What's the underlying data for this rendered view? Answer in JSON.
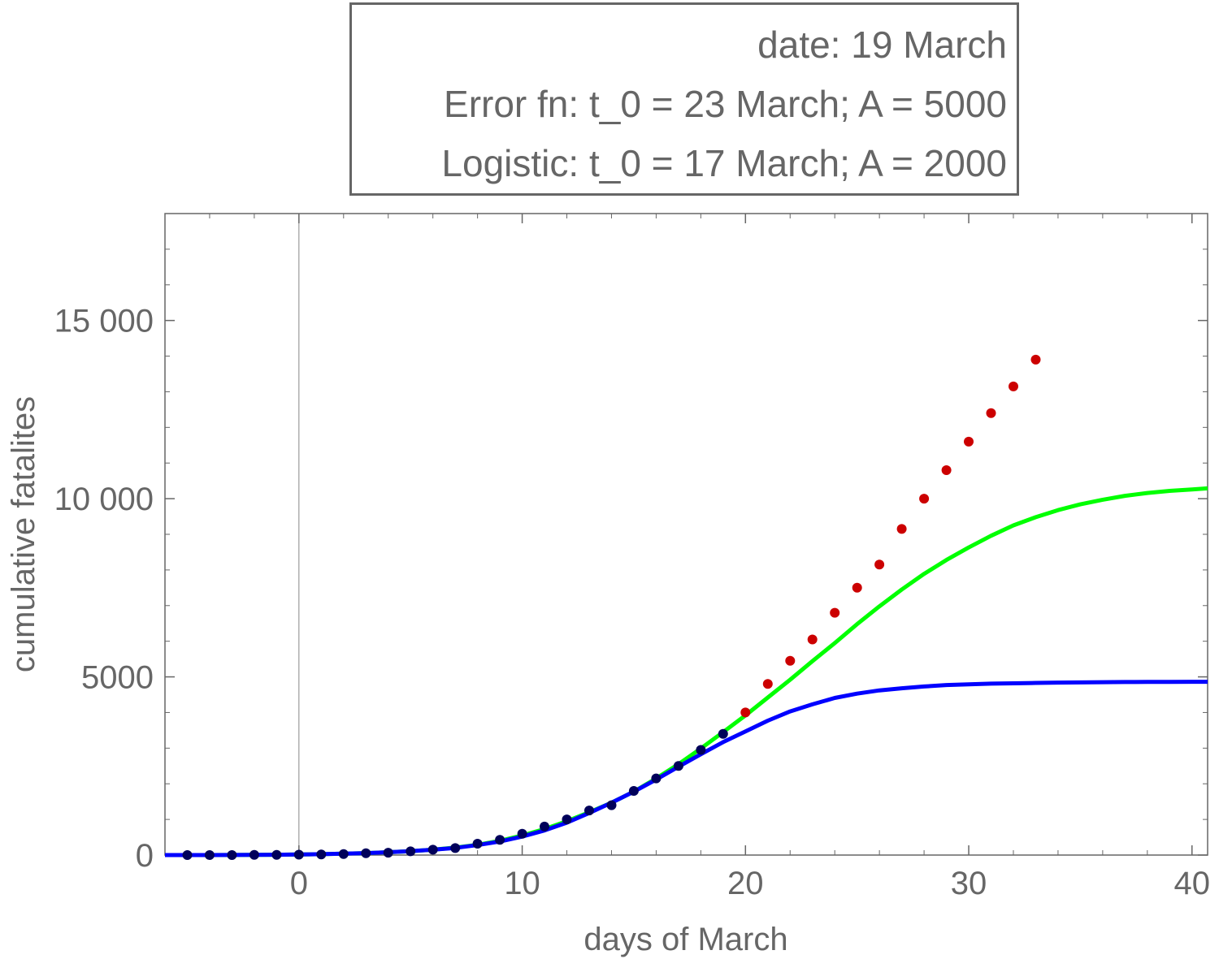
{
  "chart_data": {
    "type": "scatter",
    "legend": {
      "date_line": "date: 19 March",
      "error_fn_line": "Error fn: t_0 = 23 March; A = 5000",
      "logistic_line": "Logistic: t_0 = 17 March; A = 2000"
    },
    "xlabel": "days of March",
    "ylabel": "cumulative fatalites",
    "xlim": [
      -6,
      40.7
    ],
    "ylim": [
      0,
      18000
    ],
    "xticks": [
      0,
      10,
      20,
      30,
      40
    ],
    "xtick_labels": [
      "0",
      "10",
      "20",
      "30",
      "40"
    ],
    "yticks": [
      0,
      5000,
      10000,
      15000
    ],
    "ytick_labels": [
      "0",
      "5000",
      "10 000",
      "15 000"
    ],
    "grid": false,
    "series": [
      {
        "color": "#00ff00",
        "style": "line",
        "x": [
          -6,
          -5,
          -4,
          -3,
          -2,
          -1,
          0,
          1,
          2,
          3,
          4,
          5,
          6,
          7,
          8,
          9,
          10,
          11,
          12,
          13,
          14,
          15,
          16,
          17,
          18,
          19,
          20,
          21,
          22,
          23,
          24,
          25,
          26,
          27,
          28,
          29,
          30,
          31,
          32,
          33,
          34,
          35,
          36,
          37,
          38,
          39,
          40,
          40.7
        ],
        "y": [
          0,
          0,
          0,
          2,
          5,
          10,
          17,
          25,
          40,
          55,
          80,
          110,
          150,
          210,
          290,
          400,
          550,
          730,
          950,
          1200,
          1470,
          1780,
          2150,
          2550,
          2990,
          3450,
          3920,
          4420,
          4920,
          5440,
          5950,
          6480,
          6980,
          7450,
          7890,
          8280,
          8630,
          8960,
          9250,
          9480,
          9680,
          9840,
          9970,
          10080,
          10160,
          10220,
          10260,
          10290
        ]
      },
      {
        "color": "#0000ff",
        "style": "line",
        "x": [
          -6,
          -5,
          -4,
          -3,
          -2,
          -1,
          0,
          1,
          2,
          3,
          4,
          5,
          6,
          7,
          8,
          9,
          10,
          11,
          12,
          13,
          14,
          15,
          16,
          17,
          18,
          19,
          20,
          21,
          22,
          23,
          24,
          25,
          26,
          27,
          28,
          29,
          30,
          31,
          32,
          33,
          34,
          35,
          36,
          37,
          38,
          39,
          40,
          40.7
        ],
        "y": [
          0,
          0,
          0,
          2,
          5,
          10,
          17,
          25,
          40,
          55,
          80,
          110,
          150,
          200,
          280,
          380,
          520,
          690,
          910,
          1180,
          1470,
          1780,
          2120,
          2480,
          2830,
          3170,
          3470,
          3770,
          4030,
          4230,
          4410,
          4530,
          4620,
          4680,
          4730,
          4770,
          4790,
          4810,
          4820,
          4830,
          4840,
          4845,
          4850,
          4855,
          4858,
          4860,
          4862,
          4863
        ]
      },
      {
        "color": "#00005a",
        "style": "points",
        "x": [
          -5,
          -4,
          -3,
          -2,
          -1,
          0,
          1,
          2,
          3,
          4,
          5,
          6,
          7,
          8,
          9,
          10,
          11,
          12,
          13,
          14,
          15,
          16,
          17,
          18,
          19
        ],
        "y": [
          0,
          0,
          0,
          5,
          5,
          12,
          17,
          30,
          50,
          65,
          105,
          150,
          195,
          320,
          425,
          600,
          800,
          1000,
          1250,
          1400,
          1800,
          2150,
          2500,
          2950,
          3400
        ]
      },
      {
        "color": "#cc0000",
        "style": "points",
        "x": [
          20,
          21,
          22,
          23,
          24,
          25,
          26,
          27,
          28,
          29,
          30,
          31,
          32,
          33
        ],
        "y": [
          4000,
          4800,
          5450,
          6050,
          6800,
          7500,
          8150,
          9150,
          10000,
          10800,
          11600,
          12400,
          13150,
          13900
        ]
      }
    ]
  }
}
